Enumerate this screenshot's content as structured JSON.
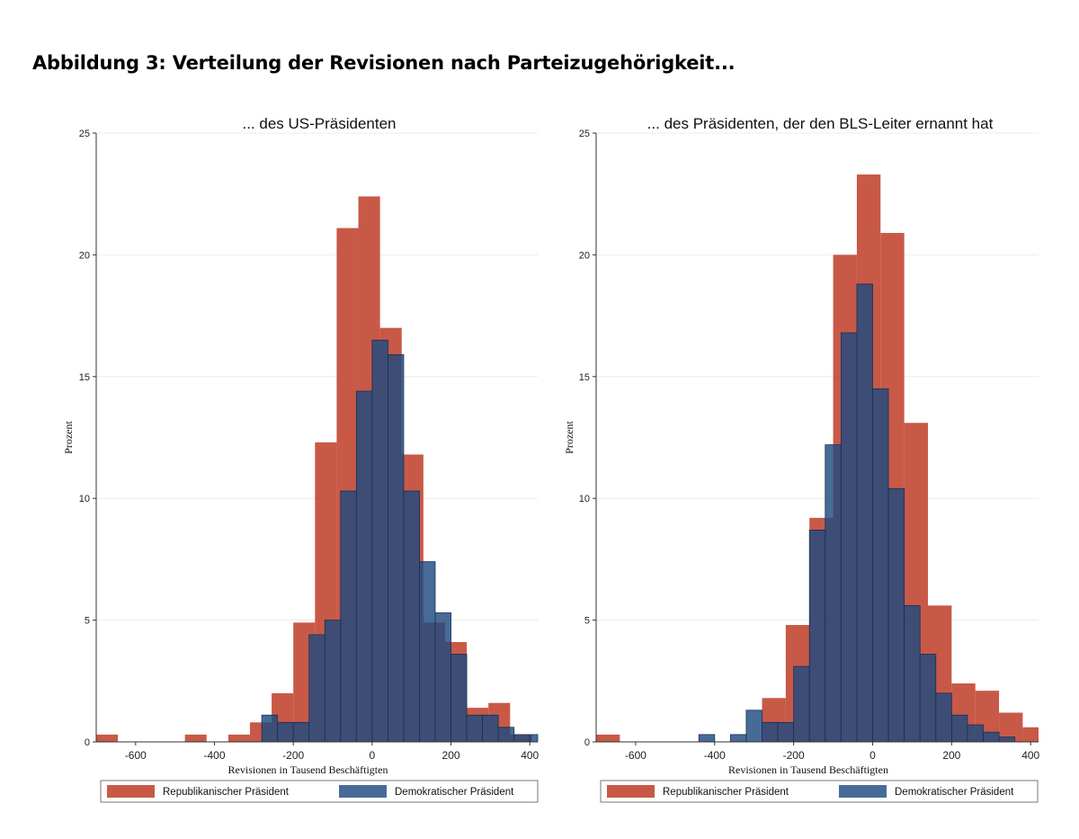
{
  "figure": {
    "title": "Abbildung 3: Verteilung der Revisionen nach Parteizugehörigkeit..."
  },
  "colors": {
    "republican": "#c0422e",
    "democratic": "#1f4a7f",
    "gridline": "#ececec",
    "axis": "#333333"
  },
  "chart_data": [
    {
      "type": "bar",
      "subtype": "overlaid-histogram",
      "title": "... des US-Präsidenten",
      "xlabel": "Revisionen in Tausend Beschäftigten",
      "ylabel": "Prozent",
      "xlim": [
        -700,
        420
      ],
      "ylim": [
        0,
        25
      ],
      "xticks": [
        "-600",
        "-400",
        "-200",
        "0",
        "200",
        "400"
      ],
      "yticks": [
        "0",
        "5",
        "10",
        "15",
        "20",
        "25"
      ],
      "grid": true,
      "legend_position": "bottom",
      "series": [
        {
          "name": "Republikanischer Präsident",
          "bins": [
            {
              "x0": -700,
              "x1": -645,
              "value": 0.3
            },
            {
              "x0": -475,
              "x1": -420,
              "value": 0.3
            },
            {
              "x0": -365,
              "x1": -310,
              "value": 0.3
            },
            {
              "x0": -310,
              "x1": -255,
              "value": 0.8
            },
            {
              "x0": -255,
              "x1": -200,
              "value": 2.0
            },
            {
              "x0": -200,
              "x1": -145,
              "value": 4.9
            },
            {
              "x0": -145,
              "x1": -90,
              "value": 12.3
            },
            {
              "x0": -90,
              "x1": -35,
              "value": 21.1
            },
            {
              "x0": -35,
              "x1": 20,
              "value": 22.4
            },
            {
              "x0": 20,
              "x1": 75,
              "value": 17.0
            },
            {
              "x0": 75,
              "x1": 130,
              "value": 11.8
            },
            {
              "x0": 130,
              "x1": 185,
              "value": 4.9
            },
            {
              "x0": 185,
              "x1": 240,
              "value": 4.1
            },
            {
              "x0": 240,
              "x1": 295,
              "value": 1.4
            },
            {
              "x0": 295,
              "x1": 350,
              "value": 1.6
            },
            {
              "x0": 350,
              "x1": 405,
              "value": 0.3
            }
          ]
        },
        {
          "name": "Demokratischer Präsident",
          "bins": [
            {
              "x0": -280,
              "x1": -240,
              "value": 1.1
            },
            {
              "x0": -240,
              "x1": -200,
              "value": 0.8
            },
            {
              "x0": -200,
              "x1": -160,
              "value": 0.8
            },
            {
              "x0": -160,
              "x1": -120,
              "value": 4.4
            },
            {
              "x0": -120,
              "x1": -80,
              "value": 5.0
            },
            {
              "x0": -80,
              "x1": -40,
              "value": 10.3
            },
            {
              "x0": -40,
              "x1": 0,
              "value": 14.4
            },
            {
              "x0": 0,
              "x1": 40,
              "value": 16.5
            },
            {
              "x0": 40,
              "x1": 80,
              "value": 15.9
            },
            {
              "x0": 80,
              "x1": 120,
              "value": 10.3
            },
            {
              "x0": 120,
              "x1": 160,
              "value": 7.4
            },
            {
              "x0": 160,
              "x1": 200,
              "value": 5.3
            },
            {
              "x0": 200,
              "x1": 240,
              "value": 3.6
            },
            {
              "x0": 240,
              "x1": 280,
              "value": 1.1
            },
            {
              "x0": 280,
              "x1": 320,
              "value": 1.1
            },
            {
              "x0": 320,
              "x1": 360,
              "value": 0.6
            },
            {
              "x0": 360,
              "x1": 400,
              "value": 0.3
            },
            {
              "x0": 400,
              "x1": 420,
              "value": 0.3
            }
          ]
        }
      ]
    },
    {
      "type": "bar",
      "subtype": "overlaid-histogram",
      "title": "... des Präsidenten, der den BLS-Leiter ernannt hat",
      "xlabel": "Revisionen in Tausend Beschäftigten",
      "ylabel": "Prozent",
      "xlim": [
        -700,
        420
      ],
      "ylim": [
        0,
        25
      ],
      "xticks": [
        "-600",
        "-400",
        "-200",
        "0",
        "200",
        "400"
      ],
      "yticks": [
        "0",
        "5",
        "10",
        "15",
        "20",
        "25"
      ],
      "grid": true,
      "legend_position": "bottom",
      "series": [
        {
          "name": "Republikanischer Präsident",
          "bins": [
            {
              "x0": -700,
              "x1": -640,
              "value": 0.3
            },
            {
              "x0": -280,
              "x1": -220,
              "value": 1.8
            },
            {
              "x0": -220,
              "x1": -160,
              "value": 4.8
            },
            {
              "x0": -160,
              "x1": -100,
              "value": 9.2
            },
            {
              "x0": -100,
              "x1": -40,
              "value": 20.0
            },
            {
              "x0": -40,
              "x1": 20,
              "value": 23.3
            },
            {
              "x0": 20,
              "x1": 80,
              "value": 20.9
            },
            {
              "x0": 80,
              "x1": 140,
              "value": 13.1
            },
            {
              "x0": 140,
              "x1": 200,
              "value": 5.6
            },
            {
              "x0": 200,
              "x1": 260,
              "value": 2.4
            },
            {
              "x0": 260,
              "x1": 320,
              "value": 2.1
            },
            {
              "x0": 320,
              "x1": 380,
              "value": 1.2
            },
            {
              "x0": 380,
              "x1": 420,
              "value": 0.6
            }
          ]
        },
        {
          "name": "Demokratischer Präsident",
          "bins": [
            {
              "x0": -440,
              "x1": -400,
              "value": 0.3
            },
            {
              "x0": -360,
              "x1": -320,
              "value": 0.3
            },
            {
              "x0": -320,
              "x1": -280,
              "value": 1.3
            },
            {
              "x0": -280,
              "x1": -240,
              "value": 0.8
            },
            {
              "x0": -240,
              "x1": -200,
              "value": 0.8
            },
            {
              "x0": -200,
              "x1": -160,
              "value": 3.1
            },
            {
              "x0": -160,
              "x1": -120,
              "value": 8.7
            },
            {
              "x0": -120,
              "x1": -80,
              "value": 12.2
            },
            {
              "x0": -80,
              "x1": -40,
              "value": 16.8
            },
            {
              "x0": -40,
              "x1": 0,
              "value": 18.8
            },
            {
              "x0": 0,
              "x1": 40,
              "value": 14.5
            },
            {
              "x0": 40,
              "x1": 80,
              "value": 10.4
            },
            {
              "x0": 80,
              "x1": 120,
              "value": 5.6
            },
            {
              "x0": 120,
              "x1": 160,
              "value": 3.6
            },
            {
              "x0": 160,
              "x1": 200,
              "value": 2.0
            },
            {
              "x0": 200,
              "x1": 240,
              "value": 1.1
            },
            {
              "x0": 240,
              "x1": 280,
              "value": 0.7
            },
            {
              "x0": 280,
              "x1": 320,
              "value": 0.4
            },
            {
              "x0": 320,
              "x1": 360,
              "value": 0.2
            }
          ]
        }
      ]
    }
  ]
}
